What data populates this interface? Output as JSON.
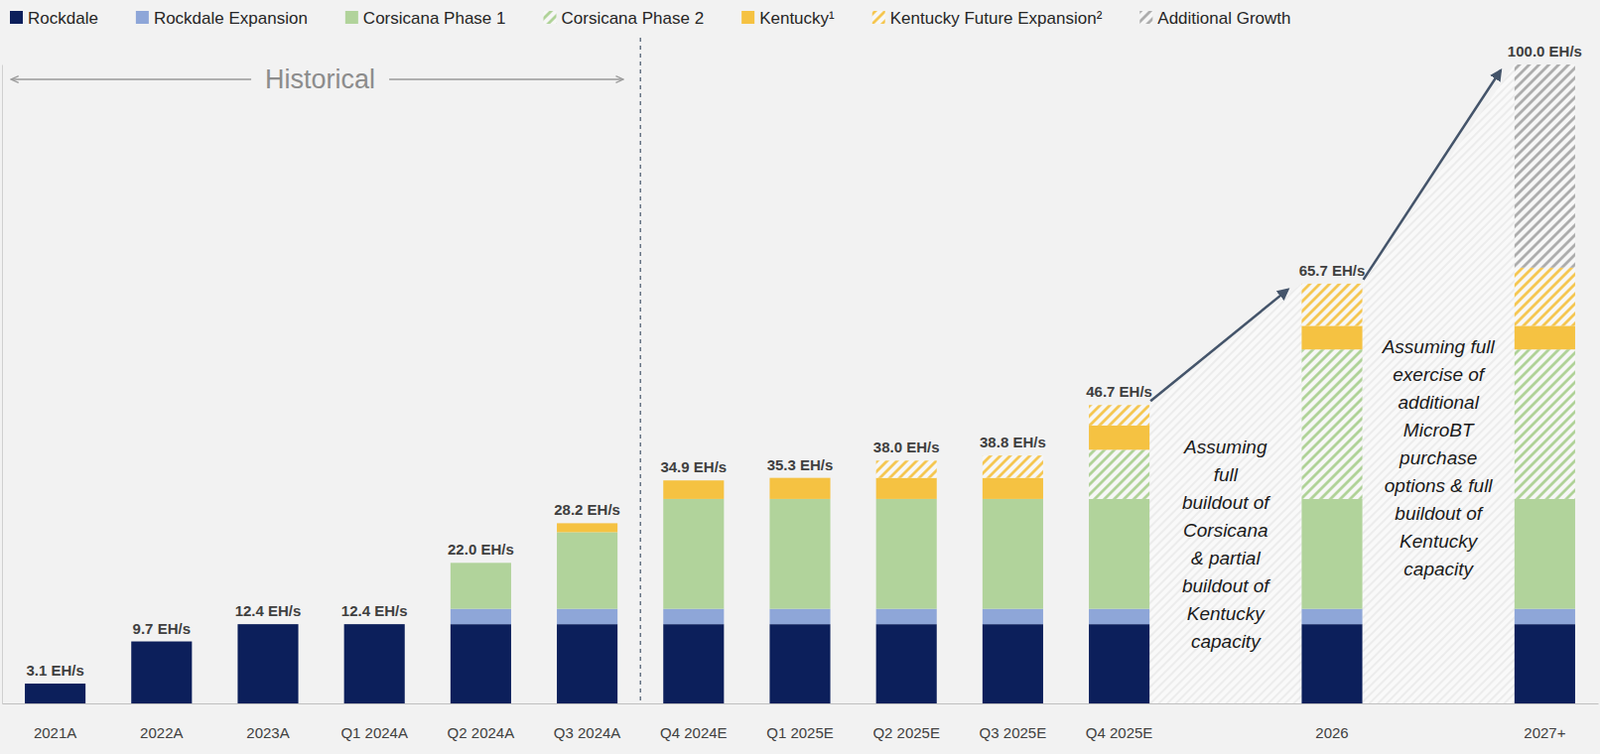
{
  "chart_data": {
    "type": "bar",
    "stacked": true,
    "legend": "top",
    "grid": false,
    "tick_labels": "x",
    "data_labels": false,
    "ylim": [
      0,
      100
    ],
    "yticks": [],
    "categories": [
      "2021A",
      "2022A",
      "2023A",
      "Q1 2024A",
      "Q2 2024A",
      "Q3 2024A",
      "Q4 2024E",
      "Q1 2025E",
      "Q2 2025E",
      "Q3 2025E",
      "Q4 2025E",
      null,
      "2026",
      null,
      "2027+"
    ],
    "series": [
      {
        "name": "Rockdale",
        "color": "#0c1f5b",
        "line_style": "solid",
        "values": [
          3.1,
          9.7,
          12.4,
          12.4,
          12.4,
          12.4,
          12.4,
          12.4,
          12.4,
          12.4,
          12.4,
          null,
          12.4,
          null,
          12.4
        ]
      },
      {
        "name": "Rockdale Expansion",
        "color": "#8ea6d8",
        "line_style": "solid",
        "values": [
          null,
          null,
          null,
          null,
          2.4,
          2.4,
          2.4,
          2.4,
          2.4,
          2.4,
          2.4,
          null,
          2.4,
          null,
          2.4
        ]
      },
      {
        "name": "Corsicana Phase 1",
        "color": "#b1d39b",
        "line_style": "solid",
        "values": [
          null,
          null,
          null,
          null,
          7.2,
          12.0,
          17.2,
          17.2,
          17.2,
          17.2,
          17.2,
          null,
          17.2,
          null,
          17.2
        ]
      },
      {
        "name": "Corsicana Phase 2",
        "color": "#a9cf8f",
        "line_style": "hatched",
        "values": [
          null,
          null,
          null,
          null,
          null,
          null,
          null,
          null,
          null,
          null,
          7.7,
          null,
          23.4,
          null,
          23.4
        ]
      },
      {
        "name": "Kentucky¹",
        "color": "#f5c242",
        "line_style": "solid",
        "values": [
          null,
          null,
          null,
          null,
          null,
          1.4,
          2.9,
          3.3,
          3.3,
          3.3,
          3.8,
          null,
          3.7,
          null,
          3.7
        ]
      },
      {
        "name": "Kentucky Future Expansion²",
        "color": "#f5c242",
        "line_style": "hatched",
        "values": [
          null,
          null,
          null,
          null,
          null,
          null,
          null,
          null,
          2.7,
          3.5,
          3.2,
          null,
          6.6,
          null,
          9.1
        ]
      },
      {
        "name": "Additional Growth",
        "color": "#a6a6a6",
        "line_style": "hatched",
        "values": [
          null,
          null,
          null,
          null,
          null,
          null,
          null,
          null,
          null,
          null,
          null,
          null,
          null,
          null,
          31.8
        ]
      }
    ],
    "totals": [
      3.1,
      9.7,
      12.4,
      12.4,
      22.0,
      28.2,
      34.9,
      35.3,
      38.0,
      38.8,
      46.7,
      null,
      65.7,
      null,
      100.0
    ],
    "total_labels": [
      "3.1 EH/s",
      "9.7 EH/s",
      "12.4 EH/s",
      "12.4 EH/s",
      "22.0 EH/s",
      "28.2 EH/s",
      "34.9 EH/s",
      "35.3 EH/s",
      "38.0 EH/s",
      "38.8 EH/s",
      "46.7 EH/s",
      null,
      "65.7 EH/s",
      null,
      "100.0 EH/s"
    ],
    "annotations": [
      {
        "text": "Historical"
      },
      {
        "lines": [
          "Assuming",
          "full",
          "buildout of",
          "Corsicana",
          "& partial",
          "buildout of",
          "Kentucky",
          "capacity"
        ]
      },
      {
        "lines": [
          "Assuming full",
          "exercise of",
          "additional",
          "MicroBT",
          "purchase",
          "options & full",
          "buildout of",
          "Kentucky",
          "capacity"
        ]
      }
    ]
  }
}
